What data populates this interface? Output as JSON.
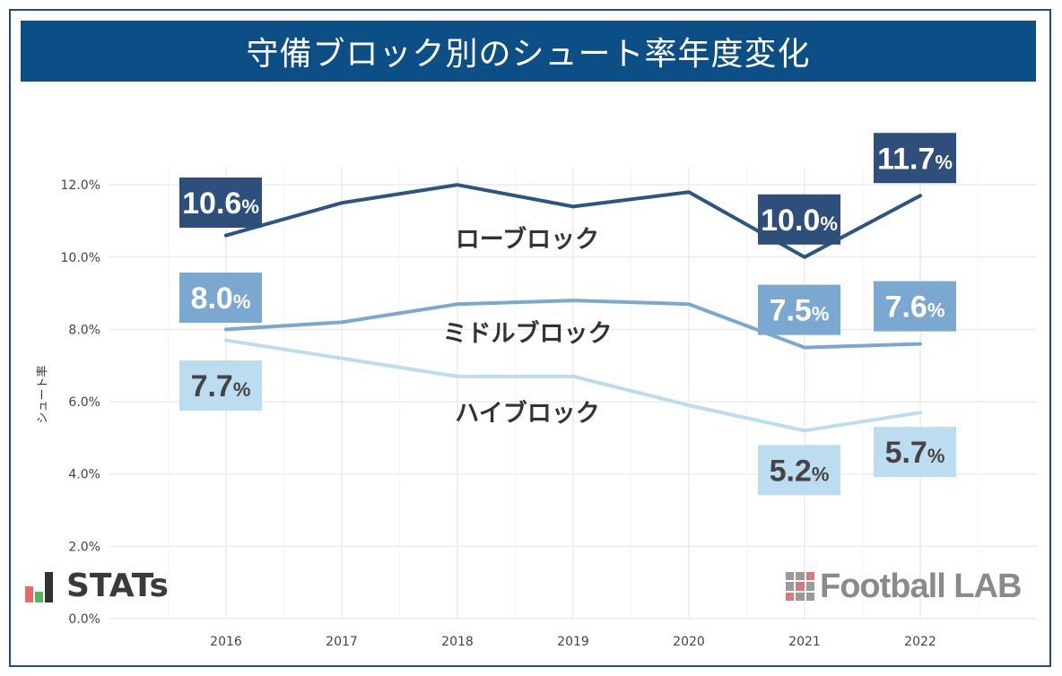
{
  "title": "守備ブロック別のシュート率年度変化",
  "ylabel": "シュート率",
  "logos": {
    "stats": "STATs",
    "football_lab": "Football LAB"
  },
  "chart_data": {
    "type": "line",
    "title": "守備ブロック別のシュート率年度変化",
    "xlabel": "",
    "ylabel": "シュート率",
    "categories": [
      "2016",
      "2017",
      "2018",
      "2019",
      "2020",
      "2021",
      "2022"
    ],
    "ylim": [
      0,
      12.5
    ],
    "yticks": [
      "0.0%",
      "2.0%",
      "4.0%",
      "6.0%",
      "8.0%",
      "10.0%",
      "12.0%"
    ],
    "grid": true,
    "series": [
      {
        "name": "ローブロック",
        "color": "#2e5482",
        "label_bg": "#2e4e7c",
        "label_color": "#ffffff",
        "values": [
          10.6,
          11.5,
          12.0,
          11.4,
          11.8,
          10.0,
          11.7
        ],
        "labels": [
          {
            "index": 0,
            "value": "10.6",
            "pos": "below"
          },
          {
            "index": 5,
            "value": "10.0",
            "pos": "above"
          },
          {
            "index": 6,
            "value": "11.7",
            "pos": "above"
          }
        ]
      },
      {
        "name": "ミドルブロック",
        "color": "#7aa8d0",
        "label_bg": "#7aa8d0",
        "label_color": "#ffffff",
        "values": [
          8.0,
          8.2,
          8.7,
          8.8,
          8.7,
          7.5,
          7.6
        ],
        "labels": [
          {
            "index": 0,
            "value": "8.0",
            "pos": "above"
          },
          {
            "index": 5,
            "value": "7.5",
            "pos": "above"
          },
          {
            "index": 6,
            "value": "7.6",
            "pos": "above"
          }
        ]
      },
      {
        "name": "ハイブロック",
        "color": "#bcdcef",
        "label_bg": "#bcdcef",
        "label_color": "#444444",
        "values": [
          7.7,
          7.2,
          6.7,
          6.7,
          5.9,
          5.2,
          5.7
        ],
        "labels": [
          {
            "index": 0,
            "value": "7.7",
            "pos": "below"
          },
          {
            "index": 5,
            "value": "5.2",
            "pos": "below"
          },
          {
            "index": 6,
            "value": "5.7",
            "pos": "below"
          }
        ]
      }
    ],
    "unit": "%"
  }
}
